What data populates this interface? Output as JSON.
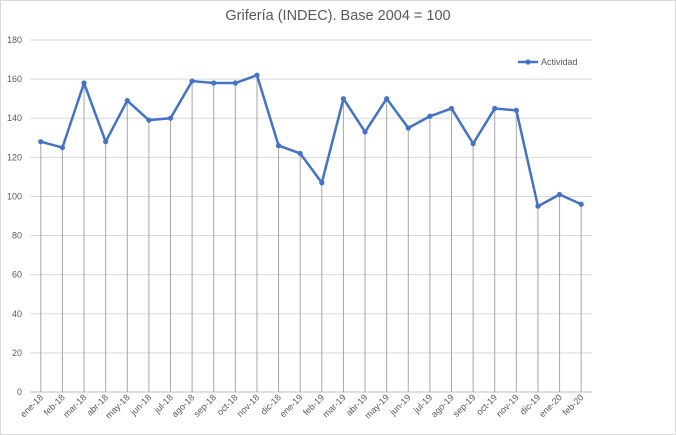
{
  "chart_data": {
    "type": "line",
    "title": "Grifería (INDEC). Base 2004 = 100",
    "xlabel": "",
    "ylabel": "",
    "ylim": [
      0,
      180
    ],
    "yticks": [
      0,
      20,
      40,
      60,
      80,
      100,
      120,
      140,
      160,
      180
    ],
    "grid": "horizontal",
    "drop_lines": true,
    "legend_position": "top-right",
    "categories": [
      "ene-18",
      "feb-18",
      "mar-18",
      "abr-18",
      "may-18",
      "jun-18",
      "jul-18",
      "ago-18",
      "sep-18",
      "oct-18",
      "nov-18",
      "dic-18",
      "ene-19",
      "feb-19",
      "mar-19",
      "abr-19",
      "may-19",
      "jun-19",
      "jul-19",
      "ago-19",
      "sep-19",
      "oct-19",
      "nov-19",
      "dic-19",
      "ene-20",
      "feb-20"
    ],
    "series": [
      {
        "name": "Actividad",
        "color": "#4472c4",
        "values": [
          128,
          125,
          158,
          128,
          149,
          139,
          140,
          159,
          158,
          158,
          162,
          126,
          122,
          107,
          150,
          133,
          150,
          135,
          141,
          145,
          127,
          145,
          144,
          95,
          101,
          96
        ]
      }
    ]
  }
}
